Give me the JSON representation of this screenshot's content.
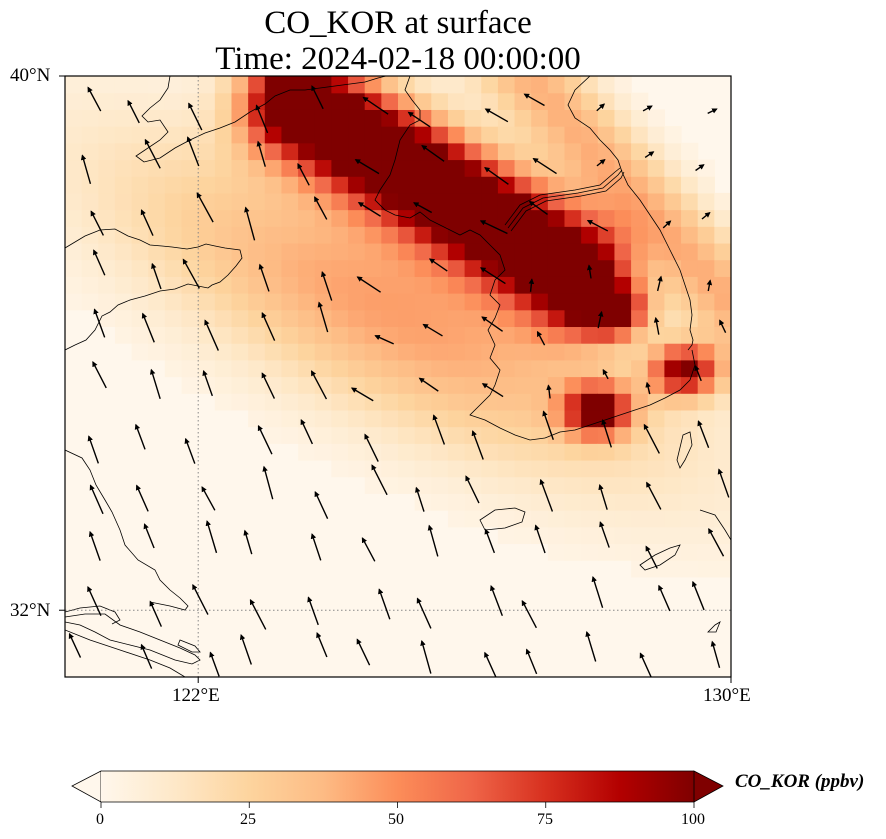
{
  "figure": {
    "title": "CO_KOR at surface",
    "subtitle": "Time: 2024-02-18 00:00:00"
  },
  "map": {
    "projection": "PlateCarree",
    "extent": {
      "lon_min": 120.0,
      "lon_max": 130.0,
      "lat_min": 31.0,
      "lat_max": 40.0
    },
    "gridlines": {
      "style": "dotted",
      "color": "#888888",
      "lons": [
        122
      ],
      "lats": [
        32
      ]
    },
    "lon_ticks": [
      {
        "value": 122,
        "label": "122°E"
      },
      {
        "value": 130,
        "label": "130°E"
      }
    ],
    "lat_ticks": [
      {
        "value": 40,
        "label": "40°N"
      },
      {
        "value": 32,
        "label": "32°N"
      }
    ],
    "field": {
      "variable": "CO_KOR",
      "units": "ppbv",
      "description": "Surface CO plume from Korea advected northwest over the Yellow Sea; highest values (>100 ppbv) along a NW-SE band from Seoul toward Liaoning, secondary maxima near the southern coast and southeast coast",
      "plume_axis": [
        {
          "lon": 123.5,
          "lat": 39.6
        },
        {
          "lon": 125.2,
          "lat": 38.6
        },
        {
          "lon": 126.8,
          "lat": 37.6
        },
        {
          "lon": 127.6,
          "lat": 37.1
        }
      ],
      "secondary_maxima": [
        {
          "lon": 128.2,
          "lat": 36.5,
          "value": 100
        },
        {
          "lon": 128.0,
          "lat": 35.0,
          "value": 100
        },
        {
          "lon": 129.3,
          "lat": 35.6,
          "value": 100
        }
      ]
    },
    "wind_vectors": {
      "color": "#000000",
      "dominant_direction": "from south-southeast (blowing toward NNW)"
    }
  },
  "colorbar": {
    "label": "CO_KOR (ppbv)",
    "colormap": "OrRd",
    "min": 0,
    "max": 100,
    "extend": "both",
    "ticks": [
      {
        "value": 0,
        "label": "0"
      },
      {
        "value": 25,
        "label": "25"
      },
      {
        "value": 50,
        "label": "50"
      },
      {
        "value": 75,
        "label": "75"
      },
      {
        "value": 100,
        "label": "100"
      }
    ],
    "colors": [
      "#fff7ec",
      "#fee8c8",
      "#fdd49e",
      "#fdbb84",
      "#fc8d59",
      "#ef6548",
      "#d7301f",
      "#b30000",
      "#7f0000"
    ]
  }
}
